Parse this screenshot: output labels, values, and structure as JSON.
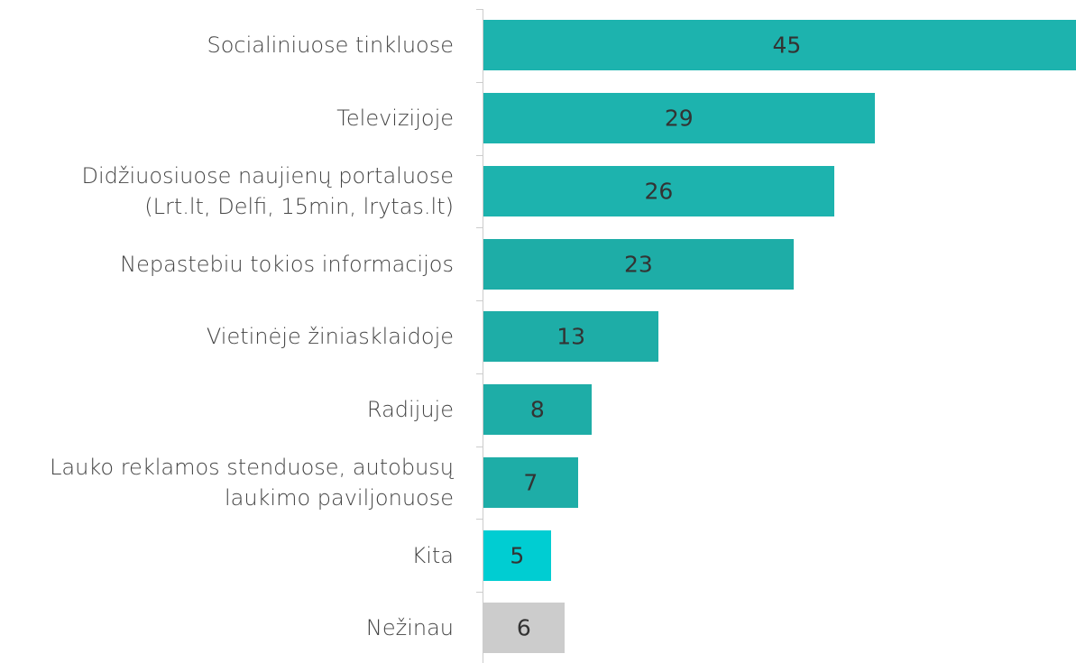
{
  "chart_data": {
    "type": "barh",
    "categories": [
      "Socialiniuose tinkluose",
      "Televizijoje",
      "Didžiuosiuose naujienų portaluose\n(Lrt.lt, Delfi, 15min, lrytas.lt)",
      "Nepastebiu tokios informacijos",
      "Vietinėje žiniasklaidoje",
      "Radijuje",
      "Lauko reklamos stenduose, autobusų\nlaukimo paviljonuose",
      "Kita",
      "Nežinau"
    ],
    "values": [
      45,
      29,
      26,
      23,
      13,
      8,
      7,
      5,
      6
    ],
    "colors": [
      "#1db3ae",
      "#1db3ae",
      "#1db3ae",
      "#1ead a7",
      "#1eada7",
      "#1eada7",
      "#1eada7",
      "#00cdd2",
      "#cccccc"
    ]
  }
}
